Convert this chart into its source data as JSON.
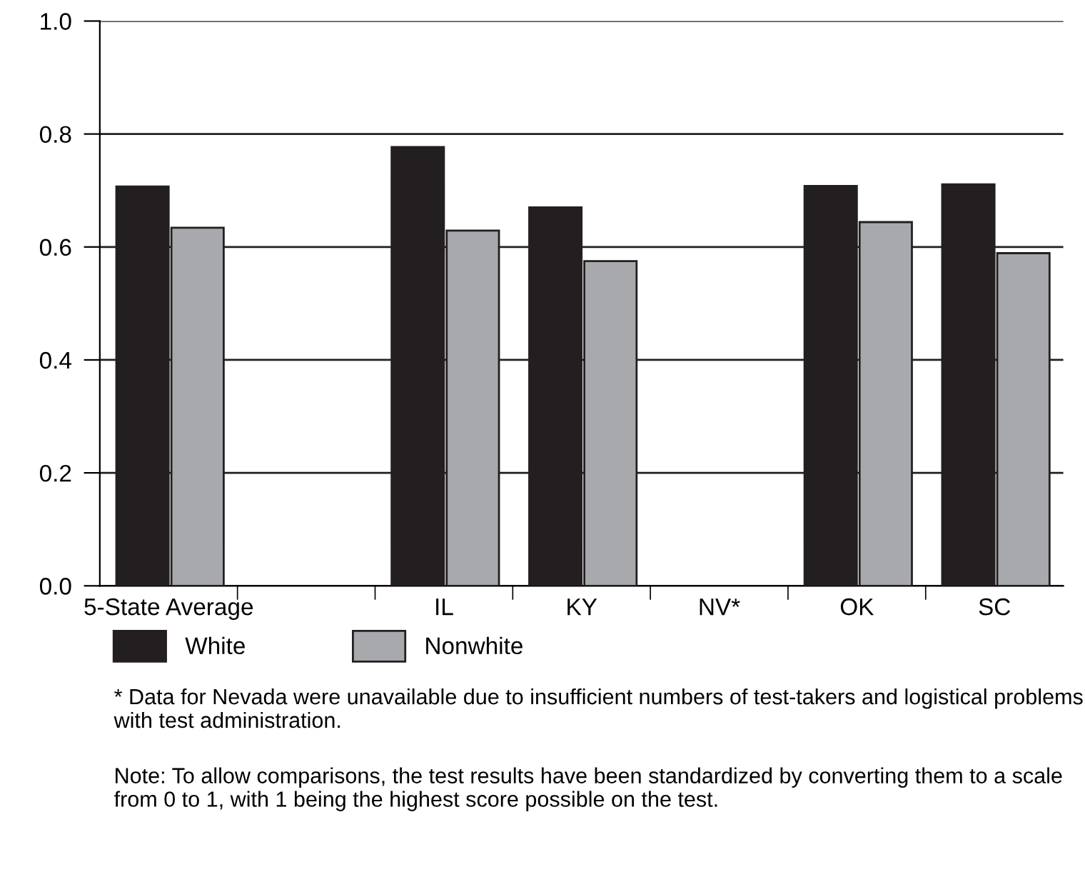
{
  "chart_data": {
    "type": "bar",
    "categories": [
      "5-State Average",
      null,
      "IL",
      "KY",
      "NV*",
      "OK",
      "SC"
    ],
    "series": [
      {
        "name": "White",
        "color": "#231f20",
        "values": [
          0.707,
          null,
          0.777,
          0.67,
          null,
          0.708,
          0.711
        ]
      },
      {
        "name": "Nonwhite",
        "color": "#a7a9ac",
        "values": [
          0.634,
          null,
          0.629,
          0.575,
          null,
          0.644,
          0.589
        ]
      }
    ],
    "ylim": [
      0,
      1.0
    ],
    "yticks": [
      {
        "value": 0,
        "label": "0.0"
      },
      0.2,
      0.4,
      0.6,
      0.8,
      {
        "value": 1,
        "label": "1.0"
      }
    ],
    "grid": "y",
    "legend": "bottom",
    "annotations": [
      "* Data for Nevada were unavailable due to insufficient numbers of test-takers and logistical problems with test administration.",
      "Note: To allow comparisons, the test results have been standardized by converting them to a scale from 0 to 1, with 1 being the highest score possible on the test."
    ]
  }
}
